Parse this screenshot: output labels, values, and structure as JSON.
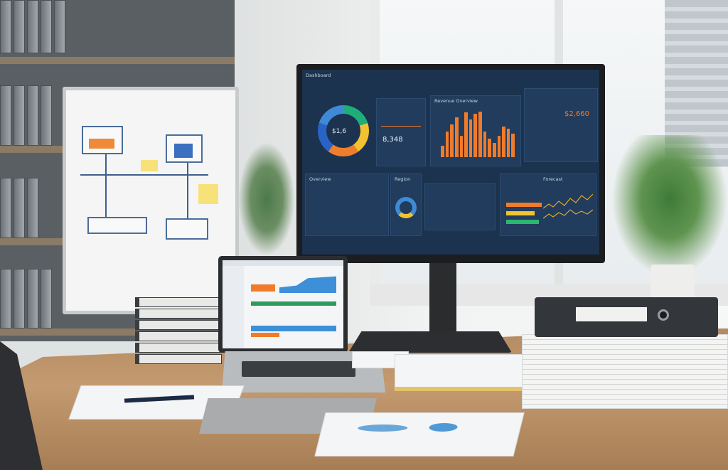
{
  "monitor": {
    "header_title": "Dashboard",
    "donut_value": "$1,6",
    "kpi_top": "$2,660",
    "kpi_mid": "8,348",
    "bar_panel_title": "Revenue Overview",
    "bottom_panel_1_title": "Overview",
    "bottom_panel_2_title": "Region",
    "bottom_panel_3_title": "Forecast",
    "bars": [
      0.25,
      0.55,
      0.7,
      0.85,
      0.45,
      0.95,
      0.8,
      0.92,
      0.97,
      0.55,
      0.4,
      0.3,
      0.45,
      0.65,
      0.6,
      0.5
    ],
    "donut_colors": [
      "#1fae7a",
      "#f2c232",
      "#ef7d2c",
      "#2a63c6",
      "#3f8ad6"
    ],
    "accent": "#f07b2a"
  },
  "laptop": {
    "chart_accent": "#3d8fd8",
    "bar_accent": "#f07b2a"
  }
}
